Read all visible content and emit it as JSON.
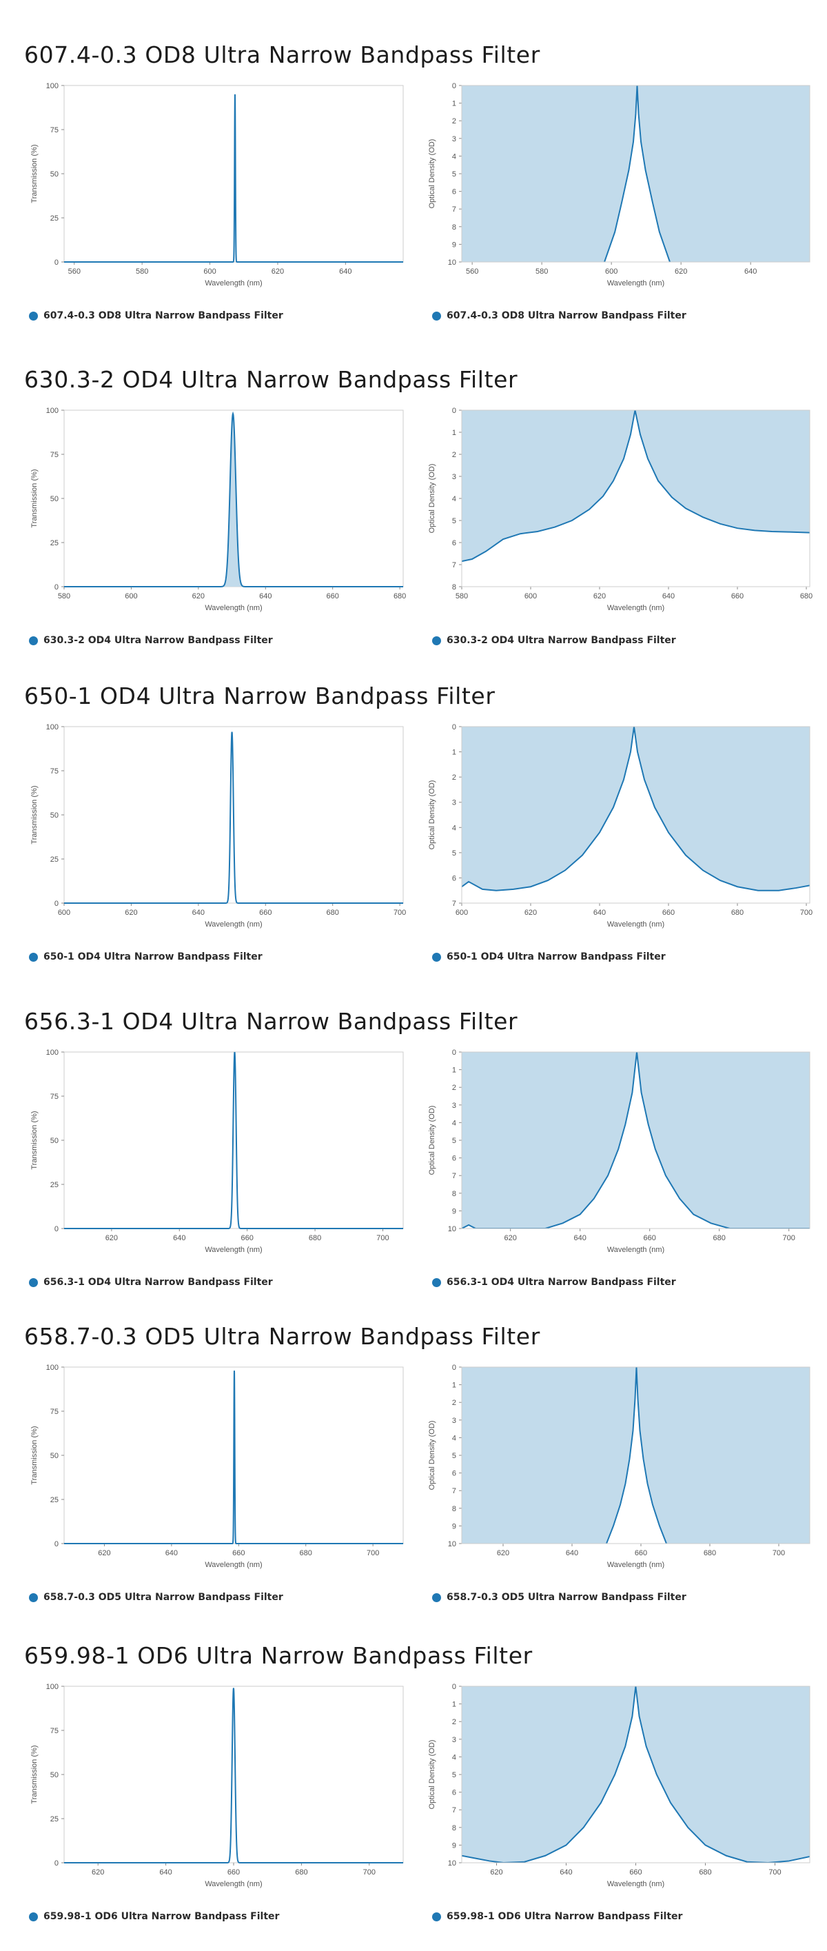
{
  "colors": {
    "series": "#1f78b4",
    "fill": "#c2dbeb",
    "frame": "#cccccc",
    "text": "#555555"
  },
  "sections": [
    {
      "title": "607.4-0.3 OD8 Ultra Narrow Bandpass Filter",
      "center": 607.4,
      "fwhm": 0.3,
      "od": 8,
      "transmission": {
        "xlim": [
          557,
          657
        ],
        "x_ticks": [
          560,
          580,
          600,
          620,
          640
        ]
      },
      "optical_density": {
        "xlim": [
          557,
          657
        ],
        "x_ticks": [
          560,
          580,
          600,
          620,
          640
        ],
        "ylim": [
          0,
          10
        ],
        "y_ticks": [
          0,
          1,
          2,
          3,
          4,
          5,
          6,
          7,
          8,
          9,
          10
        ],
        "curve": [
          [
            598,
            10
          ],
          [
            601,
            8.3
          ],
          [
            603,
            6.6
          ],
          [
            605,
            4.8
          ],
          [
            606.3,
            3.2
          ],
          [
            607,
            1.6
          ],
          [
            607.4,
            0
          ],
          [
            607.8,
            1.6
          ],
          [
            608.5,
            3.2
          ],
          [
            609.8,
            4.8
          ],
          [
            611.8,
            6.6
          ],
          [
            613.8,
            8.3
          ],
          [
            616.8,
            10
          ]
        ]
      }
    },
    {
      "title": "630.3-2 OD4 Ultra Narrow Bandpass Filter",
      "center": 630.3,
      "fwhm": 2,
      "od": 4,
      "transmission": {
        "xlim": [
          580,
          681
        ],
        "x_ticks": [
          580,
          600,
          620,
          640,
          660,
          680
        ]
      },
      "optical_density": {
        "xlim": [
          580,
          681
        ],
        "x_ticks": [
          580,
          600,
          620,
          640,
          660,
          680
        ],
        "ylim": [
          0,
          8
        ],
        "y_ticks": [
          0,
          1,
          2,
          3,
          4,
          5,
          6,
          7,
          8
        ],
        "curve": [
          [
            580,
            6.85
          ],
          [
            583,
            6.75
          ],
          [
            587,
            6.4
          ],
          [
            592,
            5.85
          ],
          [
            597,
            5.6
          ],
          [
            602,
            5.5
          ],
          [
            607,
            5.3
          ],
          [
            612,
            5
          ],
          [
            617,
            4.5
          ],
          [
            621,
            3.9
          ],
          [
            624,
            3.2
          ],
          [
            627,
            2.2
          ],
          [
            629,
            1.1
          ],
          [
            630.3,
            0
          ],
          [
            631.8,
            1.1
          ],
          [
            634,
            2.2
          ],
          [
            637,
            3.2
          ],
          [
            641,
            3.95
          ],
          [
            645,
            4.45
          ],
          [
            650,
            4.85
          ],
          [
            655,
            5.15
          ],
          [
            660,
            5.35
          ],
          [
            665,
            5.45
          ],
          [
            670,
            5.5
          ],
          [
            675,
            5.52
          ],
          [
            681,
            5.55
          ]
        ]
      }
    },
    {
      "title": "650-1 OD4 Ultra Narrow Bandpass Filter",
      "center": 650,
      "fwhm": 1,
      "od": 4,
      "transmission": {
        "xlim": [
          600,
          701
        ],
        "x_ticks": [
          600,
          620,
          640,
          660,
          680,
          700
        ]
      },
      "optical_density": {
        "xlim": [
          600,
          701
        ],
        "x_ticks": [
          600,
          620,
          640,
          660,
          680,
          700
        ],
        "ylim": [
          0,
          7
        ],
        "y_ticks": [
          0,
          1,
          2,
          3,
          4,
          5,
          6,
          7
        ],
        "curve": [
          [
            600,
            6.35
          ],
          [
            602,
            6.15
          ],
          [
            604,
            6.3
          ],
          [
            606,
            6.45
          ],
          [
            610,
            6.5
          ],
          [
            615,
            6.45
          ],
          [
            620,
            6.35
          ],
          [
            625,
            6.1
          ],
          [
            630,
            5.7
          ],
          [
            635,
            5.1
          ],
          [
            640,
            4.2
          ],
          [
            644,
            3.2
          ],
          [
            647,
            2.1
          ],
          [
            649,
            1
          ],
          [
            650,
            0
          ],
          [
            651,
            1
          ],
          [
            653,
            2.1
          ],
          [
            656,
            3.2
          ],
          [
            660,
            4.2
          ],
          [
            665,
            5.1
          ],
          [
            670,
            5.7
          ],
          [
            675,
            6.1
          ],
          [
            680,
            6.35
          ],
          [
            686,
            6.5
          ],
          [
            692,
            6.5
          ],
          [
            697,
            6.4
          ],
          [
            701,
            6.3
          ]
        ]
      }
    },
    {
      "title": "656.3-1 OD4 Ultra Narrow Bandpass Filter",
      "center": 656.3,
      "fwhm": 1,
      "od": 4,
      "transmission": {
        "xlim": [
          606,
          706
        ],
        "x_ticks": [
          620,
          640,
          660,
          680,
          700
        ]
      },
      "optical_density": {
        "xlim": [
          606,
          706
        ],
        "x_ticks": [
          620,
          640,
          660,
          680,
          700
        ],
        "ylim": [
          0,
          10
        ],
        "y_ticks": [
          0,
          1,
          2,
          3,
          4,
          5,
          6,
          7,
          8,
          9,
          10
        ],
        "curve": [
          [
            606,
            10
          ],
          [
            608,
            9.8
          ],
          [
            610,
            10
          ],
          [
            630,
            10
          ],
          [
            635,
            9.7
          ],
          [
            640,
            9.2
          ],
          [
            644,
            8.3
          ],
          [
            648,
            7
          ],
          [
            651,
            5.5
          ],
          [
            653,
            4.1
          ],
          [
            655,
            2.3
          ],
          [
            656.3,
            0
          ],
          [
            657.6,
            2.3
          ],
          [
            659.6,
            4.1
          ],
          [
            661.6,
            5.5
          ],
          [
            664.6,
            7
          ],
          [
            668.6,
            8.3
          ],
          [
            672.6,
            9.2
          ],
          [
            677.6,
            9.7
          ],
          [
            683,
            10
          ],
          [
            706,
            10
          ]
        ]
      }
    },
    {
      "title": "658.7-0.3 OD5 Ultra Narrow Bandpass Filter",
      "center": 658.7,
      "fwhm": 0.3,
      "od": 5,
      "transmission": {
        "xlim": [
          608,
          709
        ],
        "x_ticks": [
          620,
          640,
          660,
          680,
          700
        ]
      },
      "optical_density": {
        "xlim": [
          608,
          709
        ],
        "x_ticks": [
          620,
          640,
          660,
          680,
          700
        ],
        "ylim": [
          0,
          10
        ],
        "y_ticks": [
          0,
          1,
          2,
          3,
          4,
          5,
          6,
          7,
          8,
          9,
          10
        ],
        "curve": [
          [
            650,
            10
          ],
          [
            652,
            9
          ],
          [
            654,
            7.8
          ],
          [
            655.5,
            6.6
          ],
          [
            656.7,
            5.2
          ],
          [
            657.7,
            3.6
          ],
          [
            658.3,
            1.8
          ],
          [
            658.7,
            0
          ],
          [
            659.1,
            1.8
          ],
          [
            659.7,
            3.6
          ],
          [
            660.7,
            5.2
          ],
          [
            661.9,
            6.6
          ],
          [
            663.4,
            7.8
          ],
          [
            665.4,
            9
          ],
          [
            667.4,
            10
          ]
        ]
      }
    },
    {
      "title": "659.98-1 OD6 Ultra Narrow Bandpass Filter",
      "center": 659.98,
      "fwhm": 1,
      "od": 6,
      "transmission": {
        "xlim": [
          610,
          710
        ],
        "x_ticks": [
          620,
          640,
          660,
          680,
          700
        ]
      },
      "optical_density": {
        "xlim": [
          610,
          710
        ],
        "x_ticks": [
          620,
          640,
          660,
          680,
          700
        ],
        "ylim": [
          0,
          10
        ],
        "y_ticks": [
          0,
          1,
          2,
          3,
          4,
          5,
          6,
          7,
          8,
          9,
          10
        ],
        "curve": [
          [
            610,
            9.6
          ],
          [
            614,
            9.75
          ],
          [
            618,
            9.9
          ],
          [
            622,
            10
          ],
          [
            628,
            9.95
          ],
          [
            634,
            9.6
          ],
          [
            640,
            9
          ],
          [
            645,
            8
          ],
          [
            650,
            6.6
          ],
          [
            654,
            5
          ],
          [
            657,
            3.4
          ],
          [
            659,
            1.7
          ],
          [
            659.98,
            0
          ],
          [
            661,
            1.7
          ],
          [
            663,
            3.4
          ],
          [
            666,
            5
          ],
          [
            670,
            6.6
          ],
          [
            675,
            8
          ],
          [
            680,
            9
          ],
          [
            686,
            9.6
          ],
          [
            692,
            9.95
          ],
          [
            698,
            10
          ],
          [
            704,
            9.9
          ],
          [
            710,
            9.65
          ]
        ]
      }
    }
  ],
  "labels": {
    "transmission_axis": "Transmission (%)",
    "od_axis": "Optical Density (OD)",
    "x_axis": "Wavelength (nm)",
    "transmission_ticks": [
      0,
      25,
      50,
      75,
      100
    ]
  },
  "chart_data": [
    {
      "type": "line",
      "title": "607.4-0.3 OD8 Ultra Narrow Bandpass Filter",
      "xlabel": "Wavelength (nm)",
      "ylabel": "Transmission (%)",
      "xlim": [
        557,
        657
      ],
      "ylim": [
        0,
        100
      ],
      "series": [
        {
          "name": "607.4-0.3 OD8 Ultra Narrow Bandpass Filter",
          "x": [
            557,
            607.1,
            607.4,
            607.7,
            657
          ],
          "y": [
            0,
            0,
            95,
            0,
            0
          ]
        }
      ]
    },
    {
      "type": "area",
      "title": "607.4-0.3 OD8 Ultra Narrow Bandpass Filter",
      "xlabel": "Wavelength (nm)",
      "ylabel": "Optical Density (OD)",
      "xlim": [
        557,
        657
      ],
      "ylim": [
        0,
        10
      ],
      "series": [
        {
          "name": "607.4-0.3 OD8 Ultra Narrow Bandpass Filter",
          "x": [
            598,
            603,
            607.4,
            611.8,
            616.8
          ],
          "y": [
            10,
            6.6,
            0,
            6.6,
            10
          ]
        }
      ]
    },
    {
      "type": "area",
      "title": "630.3-2 OD4 Ultra Narrow Bandpass Filter",
      "xlabel": "Wavelength (nm)",
      "ylabel": "Transmission (%)",
      "xlim": [
        580,
        681
      ],
      "ylim": [
        0,
        100
      ],
      "series": [
        {
          "name": "630.3-2 OD4 Ultra Narrow Bandpass Filter",
          "x": [
            580,
            628.3,
            630.3,
            632.3,
            681
          ],
          "y": [
            0,
            50,
            98,
            50,
            0
          ]
        }
      ]
    },
    {
      "type": "area",
      "title": "630.3-2 OD4 Ultra Narrow Bandpass Filter",
      "xlabel": "Wavelength (nm)",
      "ylabel": "Optical Density (OD)",
      "xlim": [
        580,
        681
      ],
      "ylim": [
        0,
        8
      ],
      "series": [
        {
          "name": "630.3-2 OD4 Ultra Narrow Bandpass Filter",
          "x": [
            580,
            602,
            621,
            630.3,
            641,
            660,
            681
          ],
          "y": [
            6.85,
            5.5,
            3.9,
            0,
            3.95,
            5.35,
            5.55
          ]
        }
      ]
    },
    {
      "type": "line",
      "title": "650-1 OD4 Ultra Narrow Bandpass Filter",
      "xlabel": "Wavelength (nm)",
      "ylabel": "Transmission (%)",
      "xlim": [
        600,
        701
      ],
      "ylim": [
        0,
        100
      ],
      "series": [
        {
          "name": "650-1 OD4 Ultra Narrow Bandpass Filter",
          "x": [
            600,
            649,
            650,
            651,
            701
          ],
          "y": [
            0,
            48,
            97,
            48,
            0
          ]
        }
      ]
    },
    {
      "type": "area",
      "title": "650-1 OD4 Ultra Narrow Bandpass Filter",
      "xlabel": "Wavelength (nm)",
      "ylabel": "Optical Density (OD)",
      "xlim": [
        600,
        701
      ],
      "ylim": [
        0,
        7
      ],
      "series": [
        {
          "name": "650-1 OD4 Ultra Narrow Bandpass Filter",
          "x": [
            600,
            620,
            640,
            650,
            660,
            686,
            701
          ],
          "y": [
            6.35,
            6.35,
            4.2,
            0,
            4.2,
            6.5,
            6.3
          ]
        }
      ]
    },
    {
      "type": "line",
      "title": "656.3-1 OD4 Ultra Narrow Bandpass Filter",
      "xlabel": "Wavelength (nm)",
      "ylabel": "Transmission (%)",
      "xlim": [
        606,
        706
      ],
      "ylim": [
        0,
        100
      ],
      "series": [
        {
          "name": "656.3-1 OD4 Ultra Narrow Bandpass Filter",
          "x": [
            606,
            655.8,
            656.3,
            656.8,
            706
          ],
          "y": [
            0,
            50,
            100,
            50,
            0
          ]
        }
      ]
    },
    {
      "type": "area",
      "title": "656.3-1 OD4 Ultra Narrow Bandpass Filter",
      "xlabel": "Wavelength (nm)",
      "ylabel": "Optical Density (OD)",
      "xlim": [
        606,
        706
      ],
      "ylim": [
        0,
        10
      ],
      "series": [
        {
          "name": "656.3-1 OD4 Ultra Narrow Bandpass Filter",
          "x": [
            630,
            644,
            656.3,
            668.6,
            683
          ],
          "y": [
            10,
            8.3,
            0,
            8.3,
            10
          ]
        }
      ]
    },
    {
      "type": "line",
      "title": "658.7-0.3 OD5 Ultra Narrow Bandpass Filter",
      "xlabel": "Wavelength (nm)",
      "ylabel": "Transmission (%)",
      "xlim": [
        608,
        709
      ],
      "ylim": [
        0,
        100
      ],
      "series": [
        {
          "name": "658.7-0.3 OD5 Ultra Narrow Bandpass Filter",
          "x": [
            608,
            658.4,
            658.7,
            659,
            709
          ],
          "y": [
            0,
            0,
            98,
            0,
            0
          ]
        }
      ]
    },
    {
      "type": "area",
      "title": "658.7-0.3 OD5 Ultra Narrow Bandpass Filter",
      "xlabel": "Wavelength (nm)",
      "ylabel": "Optical Density (OD)",
      "xlim": [
        608,
        709
      ],
      "ylim": [
        0,
        10
      ],
      "series": [
        {
          "name": "658.7-0.3 OD5 Ultra Narrow Bandpass Filter",
          "x": [
            650,
            655.5,
            658.7,
            661.9,
            667.4
          ],
          "y": [
            10,
            6.6,
            0,
            6.6,
            10
          ]
        }
      ]
    },
    {
      "type": "line",
      "title": "659.98-1 OD6 Ultra Narrow Bandpass Filter",
      "xlabel": "Wavelength (nm)",
      "ylabel": "Transmission (%)",
      "xlim": [
        610,
        710
      ],
      "ylim": [
        0,
        100
      ],
      "series": [
        {
          "name": "659.98-1 OD6 Ultra Narrow Bandpass Filter",
          "x": [
            610,
            659.48,
            659.98,
            660.48,
            710
          ],
          "y": [
            0,
            50,
            99,
            50,
            0
          ]
        }
      ]
    },
    {
      "type": "area",
      "title": "659.98-1 OD6 Ultra Narrow Bandpass Filter",
      "xlabel": "Wavelength (nm)",
      "ylabel": "Optical Density (OD)",
      "xlim": [
        610,
        710
      ],
      "ylim": [
        0,
        10
      ],
      "series": [
        {
          "name": "659.98-1 OD6 Ultra Narrow Bandpass Filter",
          "x": [
            610,
            640,
            659.98,
            680,
            710
          ],
          "y": [
            9.6,
            9,
            0,
            9,
            9.65
          ]
        }
      ]
    }
  ]
}
